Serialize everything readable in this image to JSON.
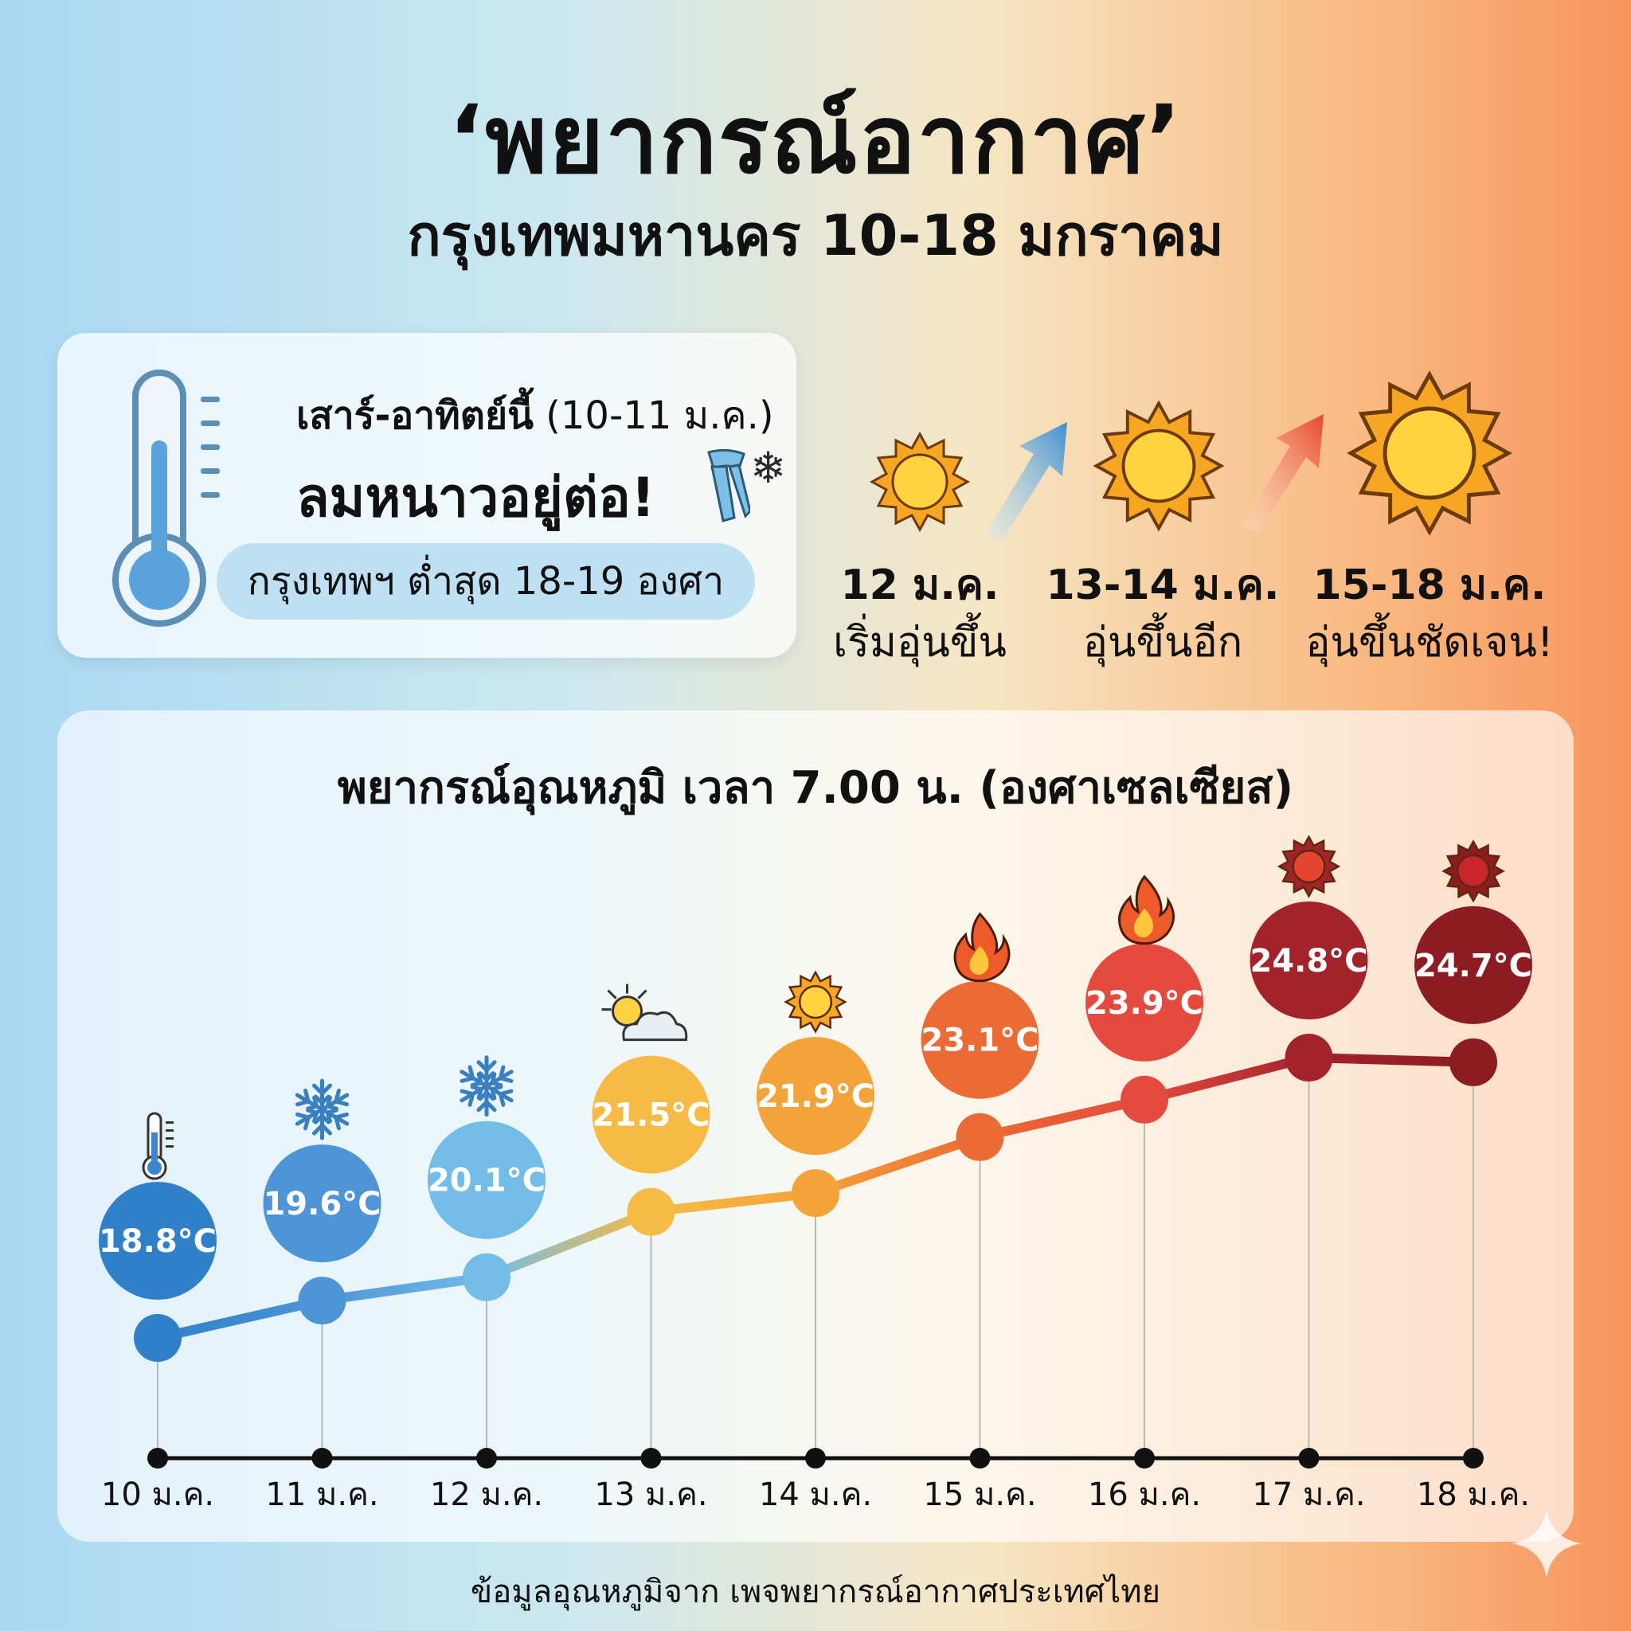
{
  "header": {
    "title": "‘พยากรณ์อากาศ’",
    "subtitle": "กรุงเทพมหานคร 10-18 มกราคม"
  },
  "weekend": {
    "line1_bold": "เสาร์-อาทิตย์นี้",
    "line1_rest": " (10-11 ม.ค.)",
    "line2": "ลมหนาวอยู่ต่อ!",
    "low": "กรุงเทพฯ ต่ำสุด 18-19 องศา",
    "icons": [
      "thermometer-icon",
      "scarf-icon",
      "snowflake-icon"
    ]
  },
  "trend": [
    {
      "date": "12 ม.ค.",
      "desc": "เริ่มอุ่นขึ้น",
      "icon": "sun-icon"
    },
    {
      "date": "13-14 ม.ค.",
      "desc": "อุ่นขึ้นอีก",
      "icon": "sun-icon"
    },
    {
      "date": "15-18 ม.ค.",
      "desc": "อุ่นขึ้นชัดเจน!",
      "icon": "sun-icon"
    }
  ],
  "chart_data": {
    "type": "line",
    "title": "พยากรณ์อุณหภูมิ เวลา 7.00 น. (องศาเซลเซียส)",
    "categories": [
      "10 ม.ค.",
      "11 ม.ค.",
      "12 ม.ค.",
      "13 ม.ค.",
      "14 ม.ค.",
      "15 ม.ค.",
      "16 ม.ค.",
      "17 ม.ค.",
      "18 ม.ค."
    ],
    "values": [
      18.8,
      19.6,
      20.1,
      21.5,
      21.9,
      23.1,
      23.9,
      24.8,
      24.7
    ],
    "labels": [
      "18.8°C",
      "19.6°C",
      "20.1°C",
      "21.5°C",
      "21.9°C",
      "23.1°C",
      "23.9°C",
      "24.8°C",
      "24.7°C"
    ],
    "icons": [
      "thermometer-icon",
      "snowflake-icon",
      "snowflake-icon",
      "sun-cloud-icon",
      "sun-icon",
      "fire-icon",
      "fire-icon",
      "sun-icon",
      "sun-icon"
    ],
    "colors": [
      "#2f7fc9",
      "#4d95d6",
      "#72bce6",
      "#f7bb45",
      "#f4a23a",
      "#ec6a33",
      "#e54a3e",
      "#a3232a",
      "#8c1c21"
    ],
    "ylim": [
      18,
      25
    ],
    "grid": false,
    "legend": "none"
  },
  "footer": "ข้อมูลอุณหภูมิจาก เพจพยากรณ์อากาศประเทศไทย"
}
